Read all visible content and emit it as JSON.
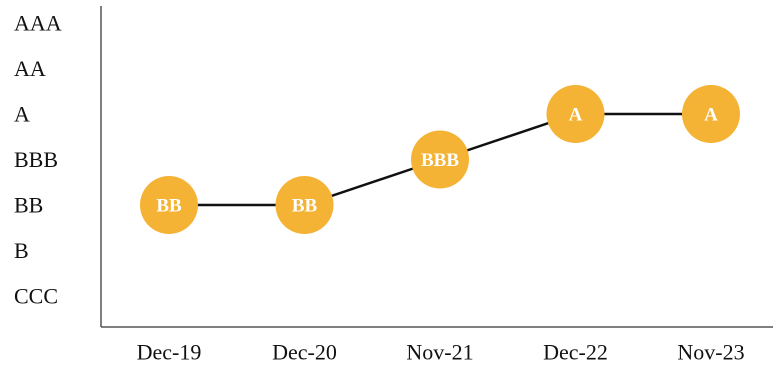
{
  "chart_data": {
    "type": "line",
    "title": "",
    "xlabel": "",
    "ylabel": "",
    "categories": [
      "Dec-19",
      "Dec-20",
      "Nov-21",
      "Dec-22",
      "Nov-23"
    ],
    "y_categories": [
      "AAA",
      "AA",
      "A",
      "BBB",
      "BB",
      "B",
      "CCC"
    ],
    "series": [
      {
        "values": [
          "BB",
          "BB",
          "BBB",
          "A",
          "A"
        ]
      }
    ],
    "data_labels": [
      "BB",
      "BB",
      "BBB",
      "A",
      "A"
    ],
    "grid": false,
    "legend": "none",
    "colors": {
      "marker": "#F5B335",
      "line": "#111111",
      "label": "#FFFFFF",
      "axis": "#555555"
    }
  }
}
